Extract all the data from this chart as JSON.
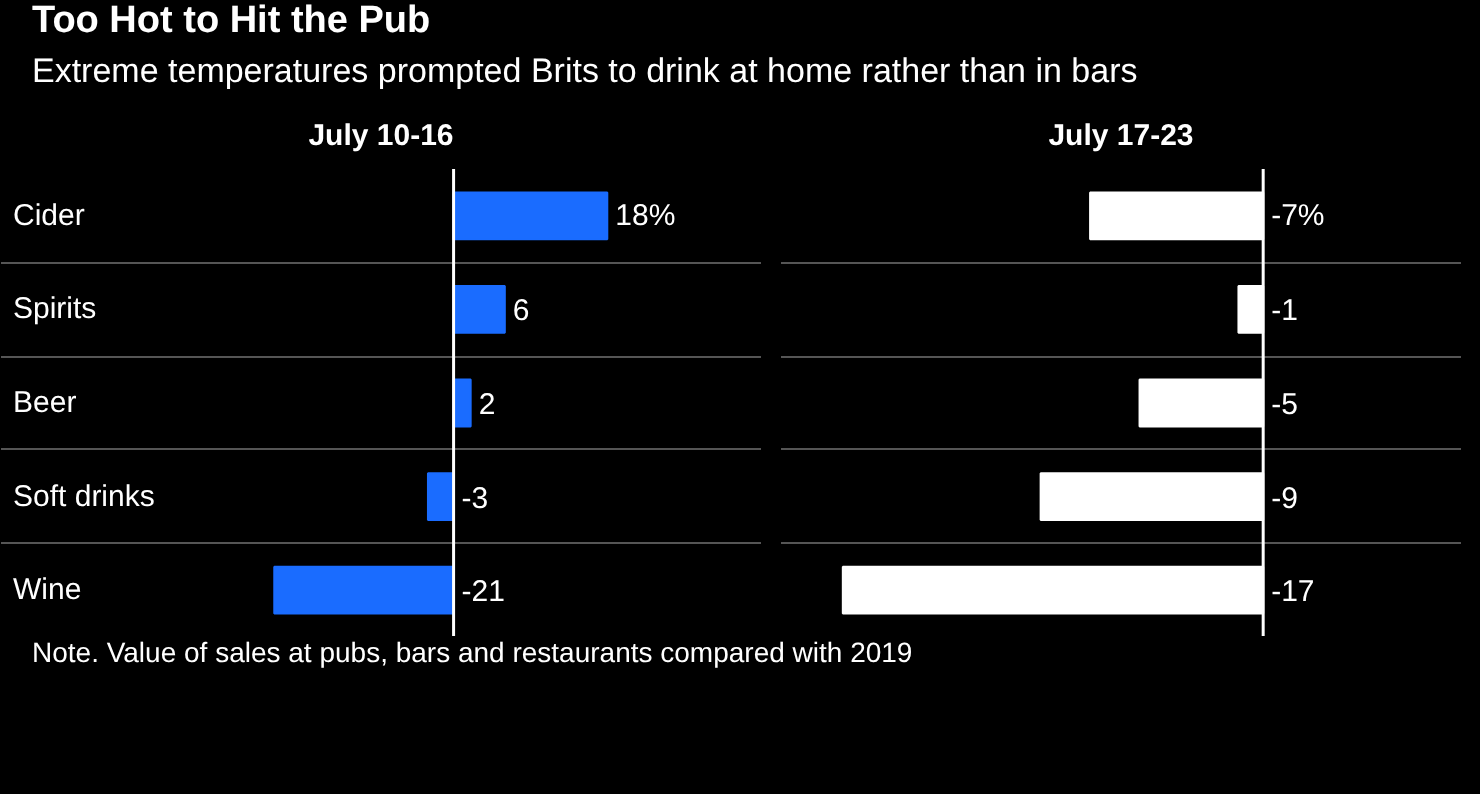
{
  "chart_data": [
    {
      "type": "bar",
      "orientation": "horizontal",
      "title": "Too Hot to Hit the Pub",
      "subtitle": "Extreme temperatures prompted Brits to drink at home rather than in bars",
      "xlabel": "July 10-16",
      "categories": [
        "Cider",
        "Spirits",
        "Beer",
        "Soft drinks",
        "Wine"
      ],
      "values": [
        18,
        6,
        2,
        -3,
        -21
      ],
      "value_labels": [
        "18%",
        "6",
        "2",
        "-3",
        "-21"
      ],
      "color": "#1a6cff",
      "xlim": [
        -53,
        36
      ],
      "tick_labels": "y",
      "grid": "y",
      "ref_lines": [
        {
          "axis": "x",
          "value": 0,
          "color": "#ffffff"
        }
      ]
    },
    {
      "type": "bar",
      "orientation": "horizontal",
      "xlabel": "July 17-23",
      "categories": [
        null,
        null,
        null,
        null,
        null
      ],
      "values": [
        -7,
        -1,
        -5,
        -9,
        -17
      ],
      "value_labels": [
        "-7%",
        "-1",
        "-5",
        "-9",
        "-17"
      ],
      "color": "#ffffff",
      "xlim": [
        -19.5,
        8
      ],
      "tick_labels": false,
      "grid": "y",
      "annotations": [
        "Note. Value of sales at pubs, bars and restaurants compared with 2019"
      ],
      "ref_lines": [
        {
          "axis": "x",
          "value": 0,
          "color": "#ffffff"
        }
      ]
    }
  ]
}
